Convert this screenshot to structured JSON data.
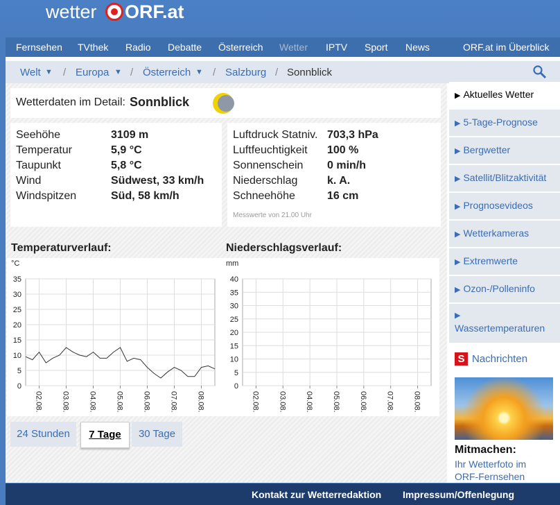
{
  "header": {
    "logo_left": "wetter",
    "logo_right": "ORF.at"
  },
  "nav": [
    "Fernsehen",
    "TVthek",
    "Radio",
    "Debatte",
    "Österreich",
    "Wetter",
    "IPTV",
    "Sport",
    "News",
    "ORF.at im Überblick"
  ],
  "breadcrumb": [
    "Welt",
    "Europa",
    "Österreich",
    "Salzburg",
    "Sonnblick"
  ],
  "detail": {
    "label": "Wetterdaten im Detail:",
    "station": "Sonnblick"
  },
  "measurements": {
    "left": [
      {
        "label": "Seehöhe",
        "value": "3109 m"
      },
      {
        "label": "Temperatur",
        "value": "5,9 °C"
      },
      {
        "label": "Taupunkt",
        "value": "5,8 °C"
      },
      {
        "label": "Wind",
        "value": "Südwest, 33 km/h"
      },
      {
        "label": "Windspitzen",
        "value": "Süd, 58 km/h"
      }
    ],
    "right": [
      {
        "label": "Luftdruck Statniv.",
        "value": "703,3 hPa"
      },
      {
        "label": "Luftfeuchtigkeit",
        "value": "100 %"
      },
      {
        "label": "Sonnenschein",
        "value": "0 min/h"
      },
      {
        "label": "Niederschlag",
        "value": "k. A."
      },
      {
        "label": "Schneehöhe",
        "value": "16 cm"
      }
    ],
    "note": "Messwerte von 21.00 Uhr"
  },
  "chart_data": [
    {
      "type": "line",
      "title": "Temperaturverlauf:",
      "y_label": "°C",
      "xlim": [
        -0.5,
        6.5
      ],
      "xticks": [
        {
          "value": 0,
          "label": "02.08."
        },
        {
          "value": 1,
          "label": "03.08."
        },
        {
          "value": 2,
          "label": "04.08."
        },
        {
          "value": 3,
          "label": "05.08."
        },
        {
          "value": 4,
          "label": "06.08."
        },
        {
          "value": 5,
          "label": "07.08."
        },
        {
          "value": 6,
          "label": "08.08."
        }
      ],
      "ylim": [
        0,
        35
      ],
      "yticks": [
        0,
        5,
        10,
        15,
        20,
        25,
        30,
        35
      ],
      "grid": true,
      "series": [
        {
          "color": "#333333",
          "x": [
            -0.5,
            -0.25,
            0,
            0.25,
            0.5,
            0.75,
            1,
            1.25,
            1.5,
            1.75,
            2,
            2.25,
            2.5,
            2.75,
            3,
            3.25,
            3.5,
            3.75,
            4,
            4.25,
            4.5,
            4.75,
            5,
            5.25,
            5.5,
            5.75,
            6,
            6.25,
            6.5
          ],
          "values": [
            9.5,
            8.5,
            11,
            7.5,
            9,
            10,
            12.5,
            11,
            10,
            9.5,
            11,
            9,
            9,
            11,
            12.5,
            8,
            9,
            8.5,
            6,
            4,
            2.5,
            4.5,
            6,
            5,
            3,
            3,
            6,
            6.5,
            5.5
          ]
        }
      ]
    },
    {
      "type": "line",
      "title": "Niederschlagsverlauf:",
      "y_label": "mm",
      "xlim": [
        -0.5,
        6.5
      ],
      "xticks": [
        {
          "value": 0,
          "label": "02.08."
        },
        {
          "value": 1,
          "label": "03.08."
        },
        {
          "value": 2,
          "label": "04.08."
        },
        {
          "value": 3,
          "label": "05.08."
        },
        {
          "value": 4,
          "label": "06.08."
        },
        {
          "value": 5,
          "label": "07.08."
        },
        {
          "value": 6,
          "label": "08.08."
        }
      ],
      "ylim": [
        0,
        40
      ],
      "yticks": [
        0,
        5,
        10,
        15,
        20,
        25,
        30,
        35,
        40
      ],
      "grid": true,
      "series": []
    }
  ],
  "range_buttons": [
    "24 Stunden",
    "7 Tage",
    "30 Tage"
  ],
  "sidebar": [
    "Aktuelles Wetter",
    "5-Tage-Prognose",
    "Bergwetter",
    "Satellit/Blitzaktivität",
    "Prognosevideos",
    "Wetterkameras",
    "Extremwerte",
    "Ozon-/Polleninfo",
    "Wassertemperaturen"
  ],
  "news": {
    "icon": "S",
    "label": "Nachrichten"
  },
  "promo": {
    "title": "Mitmachen:",
    "link": "Ihr Wetterfoto im ORF-Fernsehen"
  },
  "footer": [
    "Kontakt zur Wetterredaktion",
    "Impressum/Offenlegung"
  ]
}
